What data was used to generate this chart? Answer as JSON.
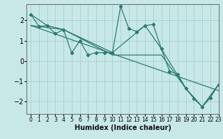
{
  "title": "",
  "xlabel": "Humidex (Indice chaleur)",
  "ylabel": "",
  "background_color": "#c8e8e8",
  "grid_color": "#a0c8c8",
  "line_color": "#2a7a70",
  "xlim": [
    -0.5,
    23
  ],
  "ylim": [
    -2.6,
    2.8
  ],
  "yticks": [
    -2,
    -1,
    0,
    1,
    2
  ],
  "xticks": [
    0,
    1,
    2,
    3,
    4,
    5,
    6,
    7,
    8,
    9,
    10,
    11,
    12,
    13,
    14,
    15,
    16,
    17,
    18,
    19,
    20,
    21,
    22,
    23
  ],
  "line1_x": [
    0,
    1,
    2,
    3,
    4,
    5,
    6,
    7,
    8,
    9,
    10,
    11,
    12,
    13,
    14,
    15,
    16,
    17,
    18,
    19,
    20,
    21,
    22,
    23
  ],
  "line1_y": [
    2.3,
    1.7,
    1.75,
    1.35,
    1.55,
    0.4,
    1.0,
    0.3,
    0.42,
    0.42,
    0.42,
    2.7,
    1.6,
    1.45,
    1.75,
    1.8,
    0.6,
    -0.5,
    -0.65,
    -1.35,
    -1.85,
    -2.25,
    -1.8,
    -1.15
  ],
  "line2_x": [
    0,
    2,
    4,
    10,
    14,
    16,
    19,
    21,
    23
  ],
  "line2_y": [
    2.3,
    1.75,
    1.55,
    0.42,
    1.75,
    0.6,
    -1.35,
    -2.25,
    -1.15
  ],
  "line3_x": [
    0,
    4,
    10,
    16,
    19,
    21,
    23
  ],
  "line3_y": [
    1.75,
    1.55,
    0.3,
    0.3,
    -1.35,
    -2.25,
    -1.15
  ],
  "line4_x": [
    0,
    23
  ],
  "line4_y": [
    1.75,
    -1.45
  ]
}
